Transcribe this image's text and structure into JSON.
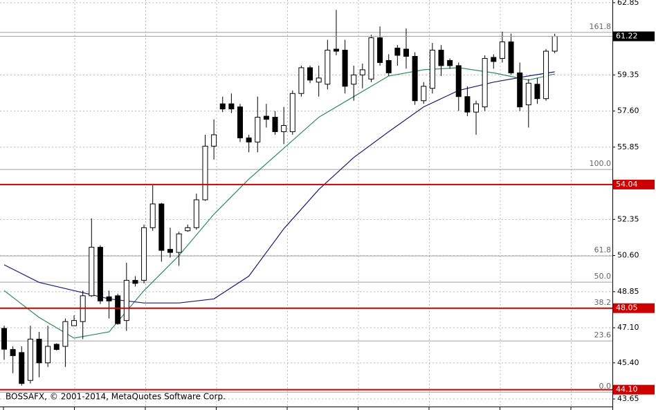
{
  "chart_data": {
    "type": "candlestick",
    "footer": "BOSSAFX, © 2001-2014, MetaQuotes Software Corp.",
    "ylim": [
      43.25,
      62.98
    ],
    "yticks": [
      62.85,
      59.35,
      {
        "value": 57.6,
        "label": "57.60"
      },
      55.85,
      52.35,
      {
        "value": 50.6,
        "label": "50.60"
      },
      48.85,
      {
        "value": 47.1,
        "label": "47.10"
      },
      {
        "value": 45.4,
        "label": "45.40"
      },
      43.65
    ],
    "grid": true,
    "up_color": "#ffffff",
    "down_color": "#000000",
    "open": [
      47.07,
      46.05,
      45.9,
      44.55,
      46.55,
      45.4,
      46.3,
      46.2,
      47.2,
      47.4,
      48.65,
      51.0,
      48.6,
      48.65,
      47.45,
      49.4,
      49.4,
      51.95,
      53.1,
      50.9,
      50.75,
      51.8,
      51.95,
      53.3,
      55.9,
      57.95,
      57.95,
      57.8,
      56.3,
      56.1,
      57.35,
      57.3,
      56.6,
      56.6,
      58.45,
      59.7,
      59.0,
      58.9,
      60.6,
      60.55,
      58.9,
      59.35,
      59.15,
      61.15,
      60.05,
      60.65,
      60.6,
      60.25,
      58.1,
      58.7,
      60.55,
      60.05,
      59.8,
      58.3,
      57.55,
      57.8,
      60.2,
      60.15,
      60.95,
      59.45,
      57.9,
      58.9,
      58.2,
      60.5
    ],
    "high": [
      47.2,
      46.2,
      46.2,
      47.2,
      46.9,
      47.2,
      46.35,
      47.55,
      47.7,
      48.9,
      52.4,
      51.1,
      48.9,
      48.75,
      50.25,
      49.6,
      52.1,
      54.0,
      53.15,
      51.95,
      51.75,
      52.1,
      53.6,
      56.45,
      57.2,
      58.3,
      58.45,
      57.95,
      56.45,
      58.3,
      57.95,
      57.6,
      57.8,
      58.6,
      59.8,
      59.8,
      59.8,
      61.05,
      62.5,
      61.05,
      59.8,
      59.9,
      61.3,
      61.7,
      60.35,
      60.8,
      61.6,
      60.45,
      59.0,
      60.9,
      60.8,
      60.15,
      59.95,
      58.8,
      58.1,
      60.3,
      60.35,
      61.45,
      61.35,
      59.95,
      59.15,
      59.2,
      60.6,
      61.35
    ],
    "low": [
      45.55,
      44.9,
      44.3,
      44.4,
      44.7,
      45.2,
      46.0,
      45.2,
      47.2,
      46.55,
      48.6,
      48.25,
      47.55,
      47.25,
      46.95,
      49.1,
      49.25,
      51.8,
      50.3,
      50.5,
      50.1,
      51.75,
      51.85,
      53.25,
      55.25,
      57.55,
      57.5,
      56.1,
      55.6,
      55.6,
      56.8,
      56.45,
      56.0,
      56.45,
      58.3,
      58.95,
      58.3,
      58.65,
      60.3,
      58.45,
      58.1,
      58.7,
      59.0,
      59.8,
      59.3,
      59.8,
      59.65,
      57.9,
      57.95,
      58.45,
      59.3,
      59.65,
      57.6,
      57.35,
      56.45,
      57.6,
      59.65,
      59.95,
      59.35,
      57.6,
      56.8,
      57.95,
      58.1,
      60.4
    ],
    "close": [
      46.06,
      45.75,
      44.4,
      46.55,
      45.4,
      46.2,
      46.05,
      47.4,
      47.45,
      48.65,
      51.0,
      48.4,
      48.4,
      47.3,
      49.4,
      49.25,
      51.95,
      53.1,
      50.85,
      50.75,
      51.65,
      51.95,
      53.3,
      55.9,
      56.45,
      57.7,
      57.7,
      56.3,
      56.1,
      57.3,
      57.2,
      56.6,
      56.9,
      58.45,
      59.7,
      59.1,
      59.2,
      60.55,
      60.5,
      58.8,
      59.35,
      59.6,
      61.15,
      59.95,
      59.45,
      60.3,
      60.25,
      58.1,
      58.8,
      60.55,
      59.8,
      59.8,
      58.3,
      57.55,
      57.95,
      60.15,
      60.0,
      60.95,
      59.45,
      57.8,
      58.95,
      58.2,
      60.5,
      61.22
    ],
    "moving_averages": [
      {
        "color": "#2e8b57",
        "x": [
          0,
          4,
          8,
          12,
          16,
          20,
          24,
          28,
          32,
          36,
          40,
          44,
          48,
          52,
          56,
          60,
          63
        ],
        "values": [
          48.9,
          47.6,
          46.6,
          46.9,
          48.9,
          50.6,
          52.6,
          54.3,
          55.8,
          57.3,
          58.3,
          59.3,
          59.6,
          59.7,
          59.45,
          59.1,
          59.4
        ]
      },
      {
        "color": "#1a1a6e",
        "x": [
          0,
          4,
          8,
          12,
          16,
          20,
          24,
          28,
          32,
          36,
          40,
          44,
          48,
          52,
          56,
          60,
          63
        ],
        "values": [
          50.15,
          49.3,
          48.9,
          48.5,
          48.3,
          48.3,
          48.5,
          49.6,
          51.9,
          53.8,
          55.35,
          56.6,
          57.8,
          58.6,
          59.0,
          59.3,
          59.5
        ]
      }
    ],
    "fib_levels": {
      "labels": [
        "161.8",
        "100.0",
        "61.8",
        "50.0",
        "38.2",
        "23.6",
        "0.0"
      ],
      "values": [
        61.41,
        54.77,
        50.58,
        49.31,
        48.04,
        46.46,
        43.98
      ],
      "color": "#a0a0a0"
    },
    "levels": {
      "values": [
        54.04,
        48.05,
        44.1
      ],
      "value_labels": [
        "54.04",
        "48.05",
        "44.10"
      ],
      "color": "#cc0000"
    },
    "current_price": {
      "value": 61.22,
      "label": "61.22"
    }
  }
}
